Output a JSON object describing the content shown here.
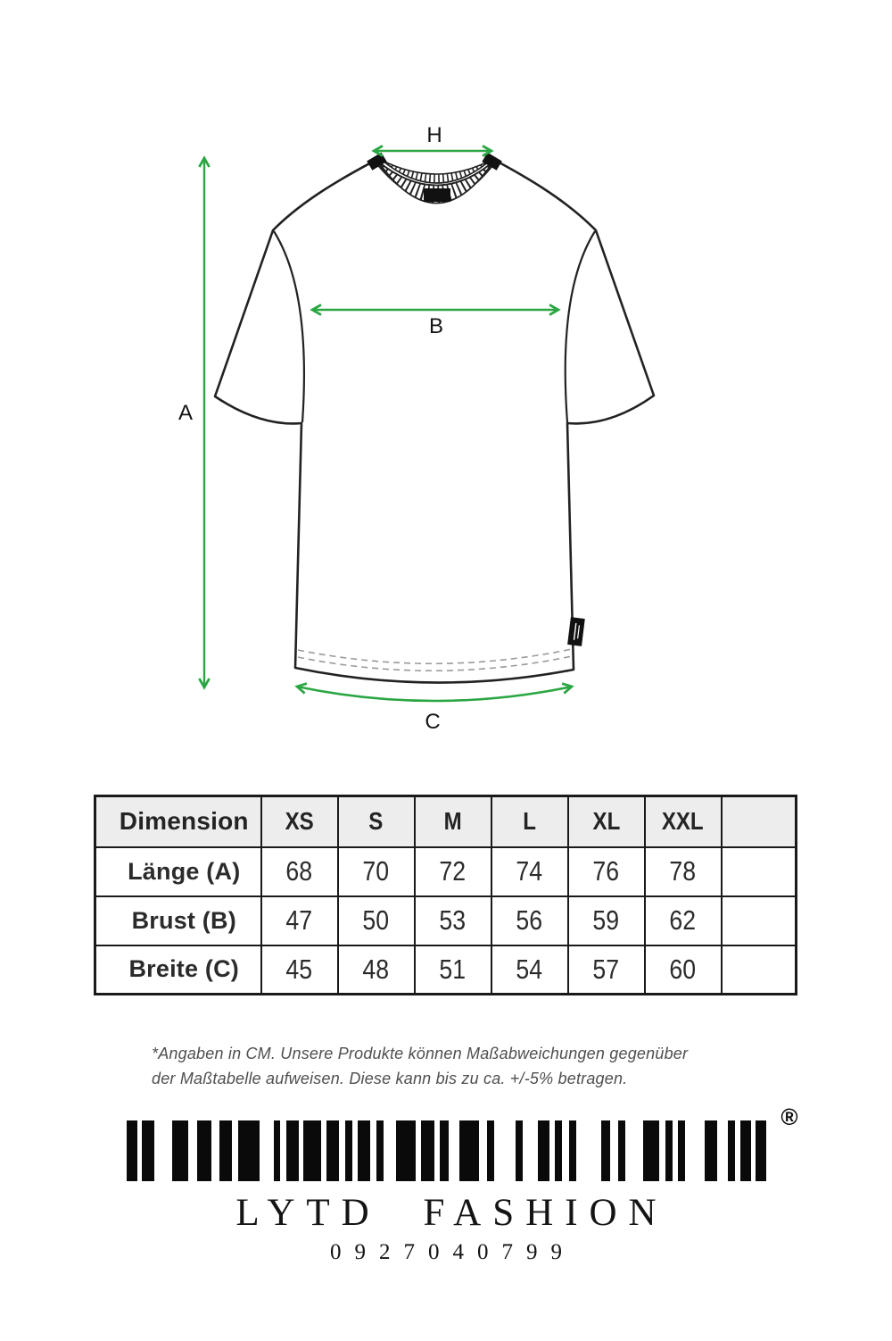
{
  "colors": {
    "arrow_green": "#2aa643",
    "outline": "#222222",
    "table_border": "#1a1a1a",
    "cell_gray": "#ededed",
    "disclaimer_gray": "#4f4f4f"
  },
  "diagram": {
    "labels": {
      "a": "A",
      "b": "B",
      "c": "C",
      "h": "H"
    }
  },
  "table": {
    "headers": [
      "Dimension",
      "XS",
      "S",
      "M",
      "L",
      "XL",
      "XXL",
      ""
    ],
    "rows": [
      {
        "label": "Länge (A)",
        "values": [
          "68",
          "70",
          "72",
          "74",
          "76",
          "78",
          ""
        ]
      },
      {
        "label": "Brust (B)",
        "values": [
          "47",
          "50",
          "53",
          "56",
          "59",
          "62",
          ""
        ]
      },
      {
        "label": "Breite (C)",
        "values": [
          "45",
          "48",
          "51",
          "54",
          "57",
          "60",
          ""
        ]
      }
    ]
  },
  "disclaimer": {
    "line1": "*Angaben in CM. Unsere Produkte können Maßabweichungen gegenüber",
    "line2": "der Maßtabelle aufweisen. Diese kann bis zu ca. +/-5% betragen."
  },
  "footer": {
    "brand": "LYTD FASHION",
    "number": "0927040799",
    "registered": "®",
    "barcode_bars": [
      [
        12,
        5
      ],
      [
        14,
        20
      ],
      [
        18,
        10
      ],
      [
        16,
        9
      ],
      [
        14,
        7
      ],
      [
        24,
        16
      ],
      [
        7,
        7
      ],
      [
        14,
        5
      ],
      [
        20,
        6
      ],
      [
        14,
        7
      ],
      [
        8,
        6
      ],
      [
        14,
        7
      ],
      [
        8,
        14
      ],
      [
        22,
        6
      ],
      [
        15,
        6
      ],
      [
        10,
        12
      ],
      [
        22,
        9
      ],
      [
        8,
        24
      ],
      [
        8,
        17
      ],
      [
        13,
        6
      ],
      [
        8,
        8
      ],
      [
        8,
        28
      ],
      [
        10,
        9
      ],
      [
        8,
        20
      ],
      [
        18,
        7
      ],
      [
        8,
        6
      ],
      [
        8,
        22
      ],
      [
        14,
        12
      ],
      [
        8,
        6
      ],
      [
        12,
        5
      ],
      [
        12,
        0
      ]
    ]
  }
}
